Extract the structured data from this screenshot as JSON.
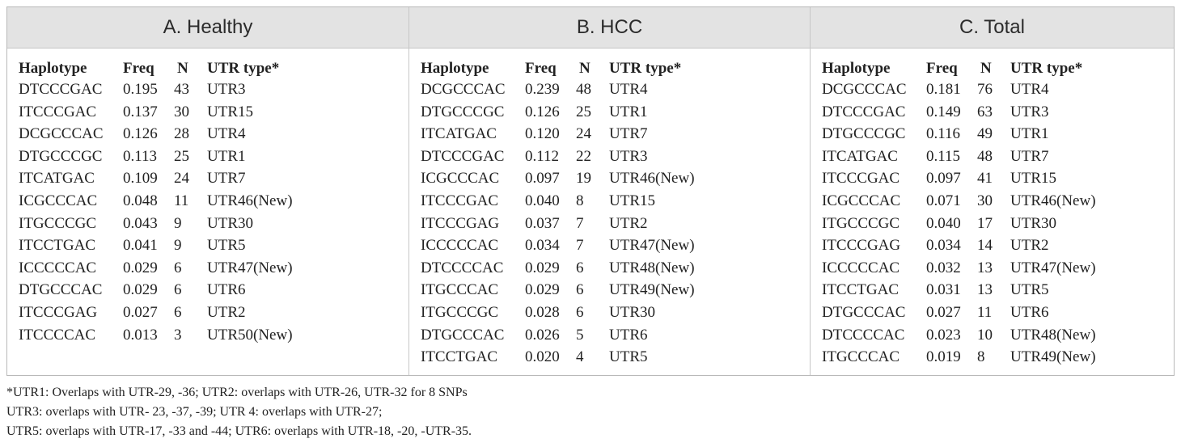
{
  "panels": [
    {
      "title": "A. Healthy",
      "headers": [
        "Haplotype",
        "Freq",
        "N",
        "UTR type*"
      ],
      "rows": [
        [
          "DTCCCGAC",
          "0.195",
          "43",
          "UTR3"
        ],
        [
          "ITCCCGAC",
          "0.137",
          "30",
          "UTR15"
        ],
        [
          "DCGCCCAC",
          "0.126",
          "28",
          "UTR4"
        ],
        [
          "DTGCCCGC",
          "0.113",
          "25",
          "UTR1"
        ],
        [
          "ITCATGAC",
          "0.109",
          "24",
          "UTR7"
        ],
        [
          "ICGCCCAC",
          "0.048",
          "11",
          "UTR46(New)"
        ],
        [
          "ITGCCCGC",
          "0.043",
          "9",
          "UTR30"
        ],
        [
          "ITCCTGAC",
          "0.041",
          "9",
          "UTR5"
        ],
        [
          "ICCCCCAC",
          "0.029",
          "6",
          "UTR47(New)"
        ],
        [
          "DTGCCCAC",
          "0.029",
          "6",
          "UTR6"
        ],
        [
          "ITCCCGAG",
          "0.027",
          "6",
          "UTR2"
        ],
        [
          "ITCCCCAC",
          "0.013",
          "3",
          "UTR50(New)"
        ]
      ]
    },
    {
      "title": "B. HCC",
      "headers": [
        "Haplotype",
        "Freq",
        "N",
        "UTR type*"
      ],
      "rows": [
        [
          "DCGCCCAC",
          "0.239",
          "48",
          "UTR4"
        ],
        [
          "DTGCCCGC",
          "0.126",
          "25",
          "UTR1"
        ],
        [
          "ITCATGAC",
          "0.120",
          "24",
          "UTR7"
        ],
        [
          "DTCCCGAC",
          "0.112",
          "22",
          "UTR3"
        ],
        [
          "ICGCCCAC",
          "0.097",
          "19",
          "UTR46(New)"
        ],
        [
          "ITCCCGAC",
          "0.040",
          "8",
          "UTR15"
        ],
        [
          "ITCCCGAG",
          "0.037",
          "7",
          "UTR2"
        ],
        [
          "ICCCCCAC",
          "0.034",
          "7",
          "UTR47(New)"
        ],
        [
          "DTCCCCAC",
          "0.029",
          "6",
          "UTR48(New)"
        ],
        [
          "ITGCCCAC",
          "0.029",
          "6",
          "UTR49(New)"
        ],
        [
          "ITGCCCGC",
          "0.028",
          "6",
          "UTR30"
        ],
        [
          "DTGCCCAC",
          "0.026",
          "5",
          "UTR6"
        ],
        [
          "ITCCTGAC",
          "0.020",
          "4",
          "UTR5"
        ]
      ]
    },
    {
      "title": "C. Total",
      "headers": [
        "Haplotype",
        "Freq",
        "N",
        "UTR type*"
      ],
      "rows": [
        [
          "DCGCCCAC",
          "0.181",
          "76",
          "UTR4"
        ],
        [
          "DTCCCGAC",
          "0.149",
          "63",
          "UTR3"
        ],
        [
          "DTGCCCGC",
          "0.116",
          "49",
          "UTR1"
        ],
        [
          "ITCATGAC",
          "0.115",
          "48",
          "UTR7"
        ],
        [
          "ITCCCGAC",
          "0.097",
          "41",
          "UTR15"
        ],
        [
          "ICGCCCAC",
          "0.071",
          "30",
          "UTR46(New)"
        ],
        [
          "ITGCCCGC",
          "0.040",
          "17",
          "UTR30"
        ],
        [
          "ITCCCGAG",
          "0.034",
          "14",
          "UTR2"
        ],
        [
          "ICCCCCAC",
          "0.032",
          "13",
          "UTR47(New)"
        ],
        [
          "ITCCTGAC",
          "0.031",
          "13",
          "UTR5"
        ],
        [
          "DTGCCCAC",
          "0.027",
          "11",
          "UTR6"
        ],
        [
          "DTCCCCAC",
          "0.023",
          "10",
          "UTR48(New)"
        ],
        [
          "ITGCCCAC",
          "0.019",
          "8",
          "UTR49(New)"
        ]
      ]
    }
  ],
  "footnotes": [
    "*UTR1: Overlaps with UTR-29, -36; UTR2: overlaps with UTR-26, UTR-32 for 8 SNPs",
    "UTR3: overlaps with UTR- 23, -37, -39; UTR 4: overlaps with UTR-27;",
    "UTR5: overlaps with UTR-17, -33 and -44; UTR6: overlaps with UTR-18, -20, -UTR-35."
  ]
}
